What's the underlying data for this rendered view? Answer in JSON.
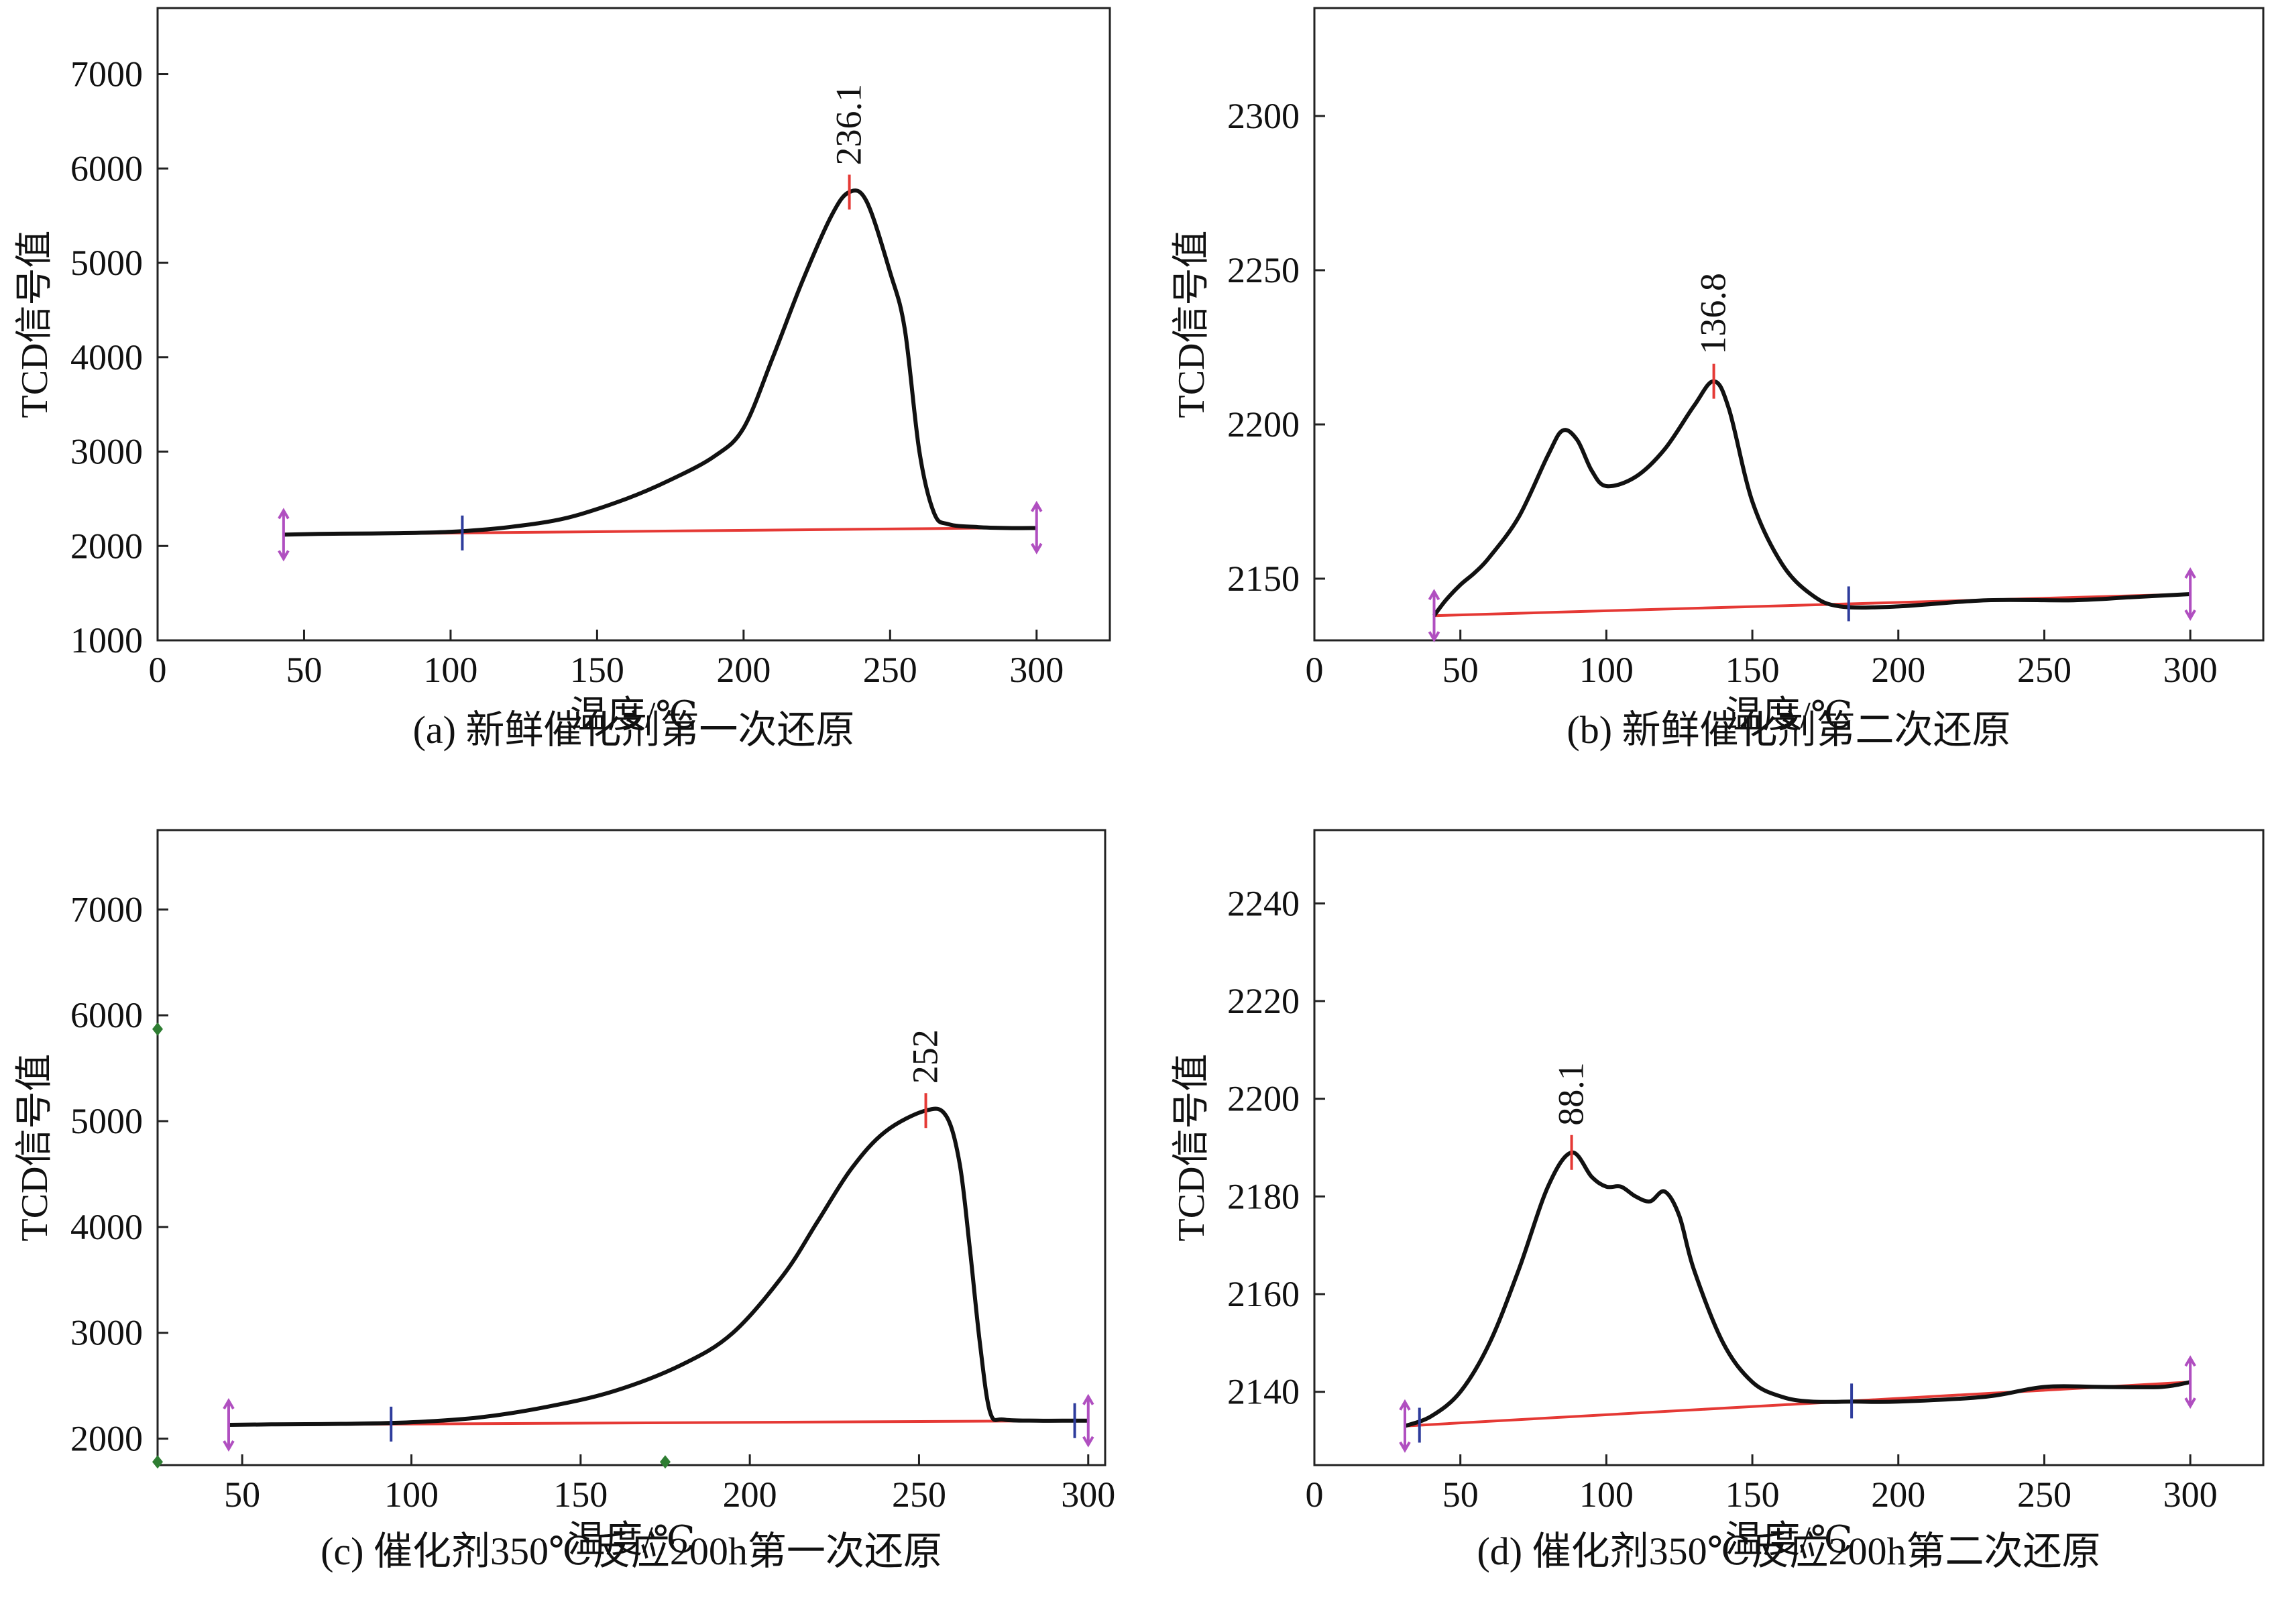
{
  "colors": {
    "curve": "#111111",
    "baseline": "#e53935",
    "peak_marker": "#e53935",
    "integration_marker": "#2e3c9c",
    "endpoint_marker": "#b04fc0",
    "green_marker": "#2e7d32",
    "frame": "#222222"
  },
  "chart_data": [
    {
      "id": "a",
      "type": "line",
      "caption": "(a) 新鲜催化剂第一次还原",
      "xlabel": "温度/℃",
      "ylabel": "TCD信号值",
      "xlim": [
        0,
        325
      ],
      "ylim": [
        1000,
        7700
      ],
      "xticks": [
        0,
        50,
        100,
        150,
        200,
        250,
        300
      ],
      "yticks": [
        1000,
        2000,
        3000,
        4000,
        5000,
        6000,
        7000
      ],
      "xtick_labels": [
        "0",
        "50",
        "100",
        "150",
        "200",
        "250",
        "300"
      ],
      "ytick_labels": [
        "1000",
        "2000",
        "3000",
        "4000",
        "5000",
        "6000",
        "7000"
      ],
      "series": [
        {
          "name": "TCD",
          "x": [
            43,
            60,
            80,
            100,
            120,
            140,
            160,
            175,
            190,
            200,
            210,
            220,
            230,
            236.1,
            242,
            250,
            255,
            260,
            265,
            270,
            280,
            290,
            300
          ],
          "y": [
            2120,
            2130,
            2135,
            2150,
            2200,
            2300,
            2500,
            2700,
            2950,
            3250,
            4000,
            4800,
            5500,
            5750,
            5650,
            4900,
            4300,
            3000,
            2350,
            2230,
            2200,
            2190,
            2190
          ]
        }
      ],
      "baseline": {
        "x": [
          43,
          300
        ],
        "y": [
          2120,
          2195
        ]
      },
      "integration_marker_x": [
        104
      ],
      "endpoint_marker_x": [
        43,
        300
      ],
      "green_marker_points": [],
      "peaks": [
        {
          "x": 236.1,
          "y": 5750,
          "label": "236.1"
        }
      ]
    },
    {
      "id": "b",
      "type": "line",
      "caption": "(b) 新鲜催化剂第二次还原",
      "xlabel": "温度/℃",
      "ylabel": "TCD信号值",
      "xlim": [
        0,
        325
      ],
      "ylim": [
        2130,
        2335
      ],
      "xticks": [
        0,
        50,
        100,
        150,
        200,
        250,
        300
      ],
      "yticks": [
        2150,
        2200,
        2250,
        2300
      ],
      "xtick_labels": [
        "0",
        "50",
        "100",
        "150",
        "200",
        "250",
        "300"
      ],
      "ytick_labels": [
        "2150",
        "2200",
        "2250",
        "2300"
      ],
      "series": [
        {
          "name": "TCD",
          "x": [
            41,
            45,
            50,
            55,
            60,
            70,
            80,
            85,
            90,
            95,
            100,
            110,
            120,
            130,
            136.8,
            142,
            150,
            160,
            170,
            180,
            200,
            230,
            260,
            280,
            300
          ],
          "y": [
            2138,
            2143,
            2148,
            2152,
            2157,
            2170,
            2190,
            2198,
            2195,
            2185,
            2180,
            2183,
            2192,
            2206,
            2214,
            2205,
            2175,
            2155,
            2145,
            2141,
            2141,
            2143,
            2143,
            2144,
            2145
          ]
        }
      ],
      "baseline": {
        "x": [
          41,
          300
        ],
        "y": [
          2138,
          2145
        ]
      },
      "integration_marker_x": [
        183
      ],
      "endpoint_marker_x": [
        41,
        300
      ],
      "green_marker_points": [],
      "peaks": [
        {
          "x": 136.8,
          "y": 2214,
          "label": "136.8"
        }
      ]
    },
    {
      "id": "c",
      "type": "line",
      "caption": "(c) 催化剂350℃反应200h第一次还原",
      "xlabel": "温度/℃",
      "ylabel": "TCD信号值",
      "xlim": [
        25,
        305
      ],
      "ylim": [
        1750,
        7750
      ],
      "xticks": [
        50,
        100,
        150,
        200,
        250,
        300
      ],
      "yticks": [
        2000,
        3000,
        4000,
        5000,
        6000,
        7000
      ],
      "xtick_labels": [
        "50",
        "100",
        "150",
        "200",
        "250",
        "300"
      ],
      "ytick_labels": [
        "2000",
        "3000",
        "4000",
        "5000",
        "6000",
        "7000"
      ],
      "series": [
        {
          "name": "TCD",
          "x": [
            46,
            60,
            80,
            100,
            120,
            140,
            160,
            180,
            195,
            210,
            220,
            230,
            240,
            252,
            258,
            262,
            265,
            268,
            271,
            275,
            285,
            295,
            300
          ],
          "y": [
            2130,
            2135,
            2140,
            2155,
            2200,
            2300,
            2450,
            2700,
            3000,
            3550,
            4050,
            4550,
            4900,
            5100,
            5050,
            4600,
            3800,
            2900,
            2250,
            2180,
            2170,
            2170,
            2170
          ]
        }
      ],
      "baseline": {
        "x": [
          46,
          300
        ],
        "y": [
          2130,
          2170
        ]
      },
      "integration_marker_x": [
        94,
        296
      ],
      "endpoint_marker_x": [
        46,
        300
      ],
      "green_marker_points": [
        {
          "x": 25,
          "y": 5870
        },
        {
          "x": 25,
          "y": 1780
        },
        {
          "x": 175,
          "y": 1780
        }
      ],
      "peaks": [
        {
          "x": 252,
          "y": 5100,
          "label": "252"
        }
      ]
    },
    {
      "id": "d",
      "type": "line",
      "caption": "(d) 催化剂350℃反应200h第二次还原",
      "xlabel": "温度/℃",
      "ylabel": "TCD信号值",
      "xlim": [
        0,
        325
      ],
      "ylim": [
        2125,
        2255
      ],
      "xticks": [
        0,
        50,
        100,
        150,
        200,
        250,
        300
      ],
      "yticks": [
        2140,
        2160,
        2180,
        2200,
        2220,
        2240
      ],
      "xtick_labels": [
        "0",
        "50",
        "100",
        "150",
        "200",
        "250",
        "300"
      ],
      "ytick_labels": [
        "2140",
        "2160",
        "2180",
        "2200",
        "2220",
        "2240"
      ],
      "series": [
        {
          "name": "TCD",
          "x": [
            31,
            40,
            50,
            60,
            70,
            80,
            88.1,
            95,
            100,
            105,
            110,
            115,
            120,
            125,
            130,
            140,
            150,
            160,
            170,
            185,
            200,
            230,
            250,
            270,
            290,
            300
          ],
          "y": [
            2133,
            2135,
            2140,
            2150,
            2165,
            2182,
            2189,
            2184,
            2182,
            2182,
            2180,
            2179,
            2181,
            2176,
            2165,
            2150,
            2142,
            2139,
            2138,
            2138,
            2138,
            2139,
            2141,
            2141,
            2141,
            2142
          ]
        }
      ],
      "baseline": {
        "x": [
          31,
          300
        ],
        "y": [
          2133,
          2142
        ]
      },
      "integration_marker_x": [
        36,
        184
      ],
      "endpoint_marker_x": [
        31,
        300
      ],
      "green_marker_points": [],
      "peaks": [
        {
          "x": 88.1,
          "y": 2189,
          "label": "88.1"
        }
      ]
    }
  ]
}
